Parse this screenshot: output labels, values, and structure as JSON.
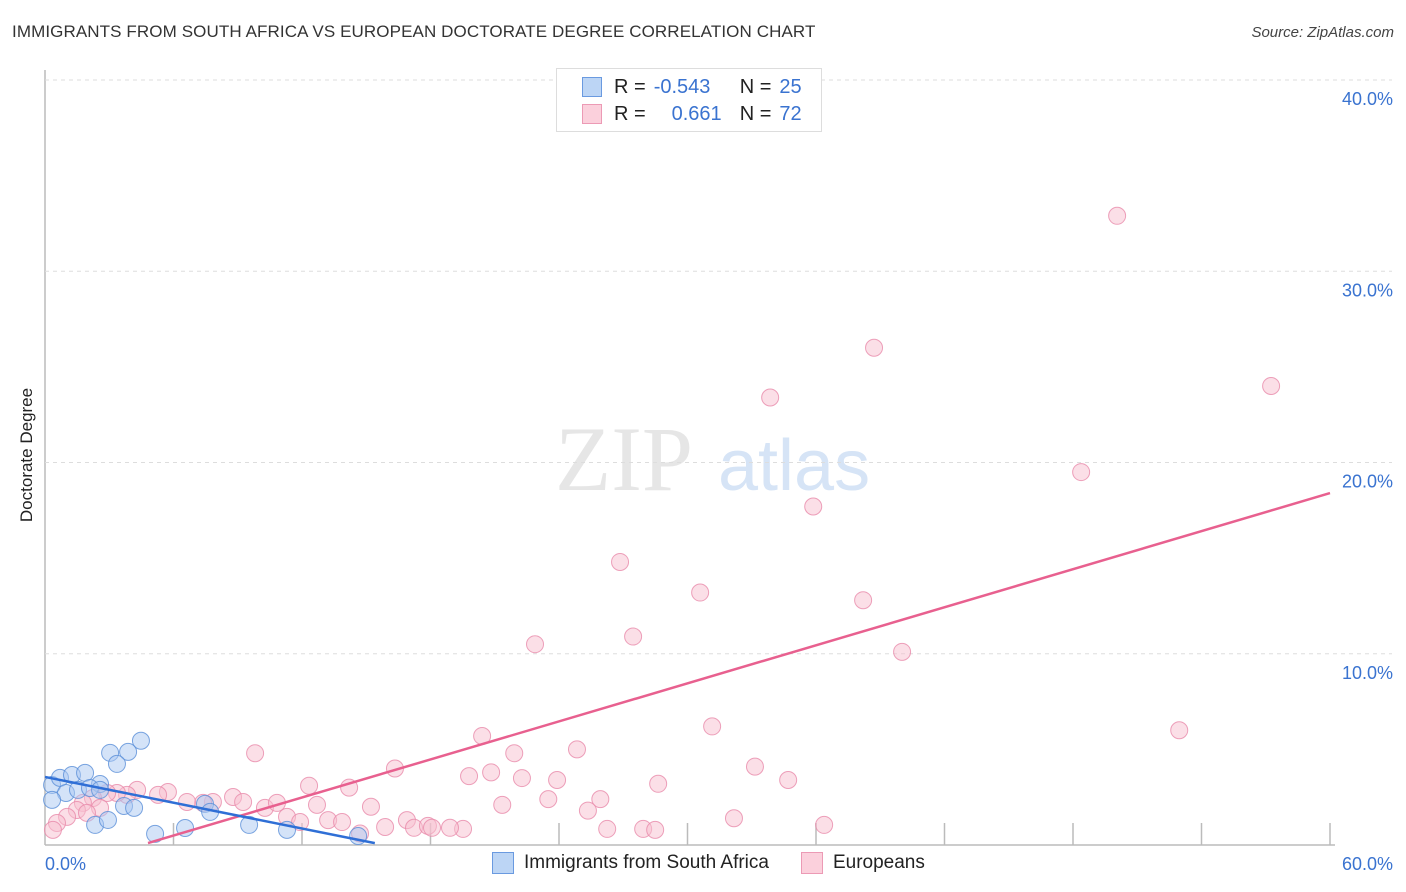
{
  "title": "IMMIGRANTS FROM SOUTH AFRICA VS EUROPEAN DOCTORATE DEGREE CORRELATION CHART",
  "source": "Source: ZipAtlas.com",
  "watermark": {
    "zip": "ZIP",
    "atlas": "atlas"
  },
  "legend": {
    "r_label": "R =",
    "n_label": "N =",
    "rows": [
      {
        "r": "-0.543",
        "n": "25"
      },
      {
        "r": "0.661",
        "n": "72"
      }
    ]
  },
  "colors": {
    "blue_fill": "#a9c8f2",
    "blue_stroke": "#5a8fd8",
    "blue_line": "#2f6fd6",
    "pink_fill": "#f7bfd0",
    "pink_stroke": "#e88aaa",
    "pink_line": "#e8608f",
    "axis_text": "#3a73d0"
  },
  "chart_data": {
    "type": "scatter",
    "title": "IMMIGRANTS FROM SOUTH AFRICA VS EUROPEAN DOCTORATE DEGREE CORRELATION CHART",
    "xlabel": "",
    "ylabel": "Doctorate Degree",
    "xlim": [
      0,
      60
    ],
    "ylim": [
      0,
      40
    ],
    "x_tick_labels": [
      "0.0%",
      "60.0%"
    ],
    "y_ticks": [
      10,
      20,
      30,
      40
    ],
    "y_tick_labels": [
      "10.0%",
      "20.0%",
      "30.0%",
      "40.0%"
    ],
    "grid": true,
    "legend_position": "bottom",
    "series": [
      {
        "name": "Immigrants from South Africa",
        "color": "blue",
        "points": [
          [
            0.33,
            3.14
          ],
          [
            0.7,
            3.51
          ],
          [
            1.26,
            3.66
          ],
          [
            1.87,
            3.77
          ],
          [
            2.57,
            3.19
          ],
          [
            3.04,
            4.82
          ],
          [
            3.88,
            4.87
          ],
          [
            4.48,
            5.45
          ],
          [
            3.36,
            4.24
          ],
          [
            0.98,
            2.72
          ],
          [
            1.54,
            2.88
          ],
          [
            2.1,
            2.98
          ],
          [
            2.34,
            1.05
          ],
          [
            2.94,
            1.31
          ],
          [
            3.69,
            2.04
          ],
          [
            4.16,
            1.94
          ],
          [
            5.14,
            0.58
          ],
          [
            6.54,
            0.89
          ],
          [
            7.47,
            2.15
          ],
          [
            7.71,
            1.73
          ],
          [
            9.53,
            1.05
          ],
          [
            11.3,
            0.79
          ],
          [
            14.62,
            0.47
          ],
          [
            0.33,
            2.36
          ],
          [
            2.57,
            2.88
          ]
        ],
        "trend": [
          [
            0,
            3.56
          ],
          [
            15.4,
            0.1
          ]
        ]
      },
      {
        "name": "Europeans",
        "color": "pink",
        "points": [
          [
            50.06,
            32.9
          ],
          [
            38.71,
            26.0
          ],
          [
            33.86,
            23.4
          ],
          [
            57.25,
            24.0
          ],
          [
            48.38,
            19.5
          ],
          [
            35.87,
            17.7
          ],
          [
            26.85,
            14.8
          ],
          [
            30.59,
            13.2
          ],
          [
            38.2,
            12.8
          ],
          [
            27.46,
            10.9
          ],
          [
            22.88,
            10.5
          ],
          [
            40.02,
            10.1
          ],
          [
            31.15,
            6.2
          ],
          [
            52.96,
            6.0
          ],
          [
            20.41,
            5.7
          ],
          [
            24.84,
            5.0
          ],
          [
            21.91,
            4.8
          ],
          [
            9.81,
            4.8
          ],
          [
            33.15,
            4.1
          ],
          [
            16.34,
            4.0
          ],
          [
            19.8,
            3.6
          ],
          [
            20.83,
            3.8
          ],
          [
            22.27,
            3.5
          ],
          [
            23.91,
            3.4
          ],
          [
            28.63,
            3.2
          ],
          [
            34.7,
            3.4
          ],
          [
            12.33,
            3.1
          ],
          [
            14.2,
            3.0
          ],
          [
            25.93,
            2.4
          ],
          [
            23.5,
            2.4
          ],
          [
            21.35,
            2.1
          ],
          [
            25.35,
            1.8
          ],
          [
            15.22,
            2.0
          ],
          [
            12.7,
            2.1
          ],
          [
            32.17,
            1.4
          ],
          [
            36.38,
            1.05
          ],
          [
            26.25,
            0.84
          ],
          [
            27.93,
            0.84
          ],
          [
            28.49,
            0.79
          ],
          [
            19.52,
            0.84
          ],
          [
            15.88,
            0.94
          ],
          [
            16.9,
            1.3
          ],
          [
            17.23,
            0.9
          ],
          [
            17.88,
            1.0
          ],
          [
            18.07,
            0.9
          ],
          [
            18.91,
            0.9
          ],
          [
            13.22,
            1.3
          ],
          [
            13.87,
            1.2
          ],
          [
            14.71,
            0.6
          ],
          [
            11.3,
            1.47
          ],
          [
            11.91,
            1.2
          ],
          [
            8.78,
            2.51
          ],
          [
            9.25,
            2.25
          ],
          [
            10.27,
            1.94
          ],
          [
            10.83,
            2.2
          ],
          [
            7.84,
            2.25
          ],
          [
            7.38,
            2.2
          ],
          [
            6.63,
            2.25
          ],
          [
            5.74,
            2.77
          ],
          [
            5.28,
            2.62
          ],
          [
            4.3,
            2.88
          ],
          [
            3.83,
            2.62
          ],
          [
            3.36,
            2.72
          ],
          [
            2.9,
            2.72
          ],
          [
            2.24,
            2.46
          ],
          [
            1.77,
            2.2
          ],
          [
            1.49,
            1.83
          ],
          [
            1.03,
            1.47
          ],
          [
            0.56,
            1.15
          ],
          [
            0.37,
            0.79
          ],
          [
            2.57,
            1.94
          ],
          [
            1.96,
            1.68
          ]
        ],
        "trend": [
          [
            4.81,
            0.1
          ],
          [
            60,
            18.4
          ]
        ]
      }
    ]
  }
}
